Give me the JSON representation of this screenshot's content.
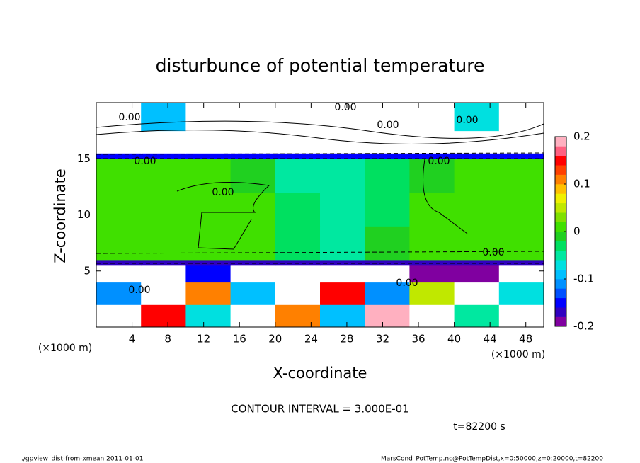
{
  "chart_data": {
    "type": "heatmap",
    "title": "disturbunce of potential temperature",
    "x_label": "X-coordinate",
    "y_label": "Z-coordinate",
    "x_unit_left": "(×1000 m)",
    "x_unit_right": "(×1000 m)",
    "contour_interval": "CONTOUR INTERVAL = 3.000E-01",
    "time_label": "t=82200 s",
    "footer_left": "./gpview_dist-from-xmean  2011-01-01",
    "footer_right": "MarsCond_PotTemp.nc@PotTempDist,x=0:50000,z=0:20000,t=82200",
    "contour_labels": [
      "0.00",
      "0.00",
      "0.00",
      "0.00",
      "0.00",
      "0.00",
      "0.00",
      "0.00",
      "0.00",
      "0.00"
    ],
    "xlim": [
      0,
      50
    ],
    "ylim": [
      0,
      20
    ],
    "xticks": [
      4,
      8,
      12,
      16,
      20,
      24,
      28,
      32,
      36,
      40,
      44,
      48
    ],
    "yticks": [
      5,
      10,
      15
    ],
    "x_edges": [
      0,
      5,
      10,
      15,
      20,
      25,
      30,
      35,
      40,
      45,
      50
    ],
    "z_edges": [
      0,
      2,
      4,
      5.5,
      6,
      9,
      12,
      15,
      15.5,
      17.5,
      20
    ],
    "values": [
      [
        0.3,
        0.15,
        -0.08,
        0.3,
        0.12,
        -0.1,
        0.18,
        0.3,
        -0.05,
        0.3
      ],
      [
        -0.12,
        0.3,
        0.1,
        -0.1,
        0.3,
        0.15,
        -0.12,
        0.05,
        0.3,
        -0.08
      ],
      [
        0.3,
        0.3,
        -0.15,
        0.3,
        0.3,
        0.3,
        0.3,
        -0.19,
        -0.19,
        0.3
      ],
      [
        -0.18,
        -0.18,
        -0.18,
        -0.18,
        -0.18,
        -0.18,
        -0.18,
        -0.18,
        -0.18,
        -0.18
      ],
      [
        0.01,
        0.01,
        0,
        0,
        -0.03,
        -0.04,
        -0.02,
        0.01,
        0.01,
        0.02
      ],
      [
        0.01,
        0,
        0,
        0,
        -0.03,
        -0.04,
        -0.03,
        0,
        0.01,
        0.01
      ],
      [
        0.01,
        0.01,
        0,
        -0.02,
        -0.04,
        -0.05,
        -0.03,
        -0.01,
        0.01,
        0.01
      ],
      [
        -0.15,
        -0.15,
        -0.15,
        -0.15,
        -0.15,
        -0.15,
        -0.15,
        -0.15,
        -0.15,
        -0.15
      ],
      [
        0.3,
        0.3,
        0.3,
        0.3,
        0.3,
        0.3,
        0.3,
        0.3,
        0.3,
        0.3
      ],
      [
        0.3,
        -0.1,
        0.3,
        0.3,
        0.3,
        0.3,
        0.3,
        0.3,
        -0.08,
        0.3
      ]
    ],
    "clim": [
      -0.2,
      0.2
    ],
    "cticks": [
      0.2,
      0.1,
      0,
      -0.1,
      -0.2
    ],
    "colors": [
      "#8000a0",
      "#3000c0",
      "#0000ff",
      "#0050ff",
      "#0090ff",
      "#00c0ff",
      "#00e0e0",
      "#00e8a0",
      "#00e060",
      "#20d020",
      "#40e000",
      "#80e000",
      "#c0e800",
      "#f0f000",
      "#ffc000",
      "#ff8000",
      "#ff4000",
      "#ff0000",
      "#ff6080",
      "#ffb0c0"
    ]
  }
}
